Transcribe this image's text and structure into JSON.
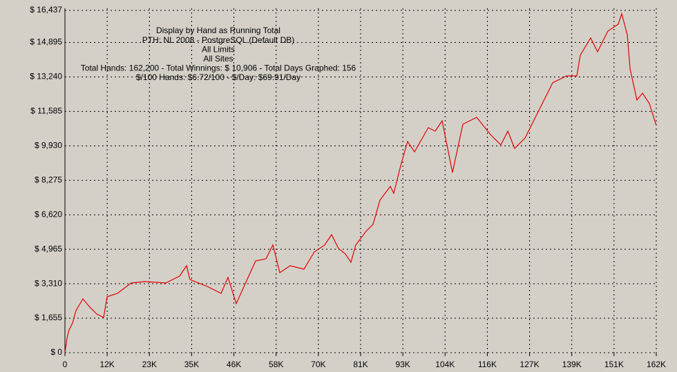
{
  "chart_data": {
    "type": "line",
    "annotations": [
      "Display by Hand as Running Total",
      "PTH: NL 2008 - PostgreSQL (Default DB)",
      "All Limits",
      "All Sites",
      "Total Hands: 162,200 - Total Winnings: $ 10,906 - Total Days Graphed: 156",
      "$/100 Hands: $6.72/100 - $/Day: $69.91/Day"
    ],
    "color": "#e00000",
    "grid": true,
    "xlim": [
      0,
      162200
    ],
    "ylim": [
      0,
      16437
    ],
    "xticks": [
      0,
      {
        "value": 11586,
        "label": "12K"
      },
      {
        "value": 23171,
        "label": "23K"
      },
      {
        "value": 34757,
        "label": "35K"
      },
      {
        "value": 46343,
        "label": "46K"
      },
      {
        "value": 57929,
        "label": "58K"
      },
      {
        "value": 69514,
        "label": "70K"
      },
      {
        "value": 81100,
        "label": "81K"
      },
      {
        "value": 92686,
        "label": "93K"
      },
      {
        "value": 104271,
        "label": "104K"
      },
      {
        "value": 115857,
        "label": "116K"
      },
      {
        "value": 127443,
        "label": "127K"
      },
      {
        "value": 139029,
        "label": "139K"
      },
      {
        "value": 150614,
        "label": "151K"
      },
      {
        "value": 162200,
        "label": "162K"
      }
    ],
    "yticks": [
      {
        "value": 0,
        "label": "$ 0"
      },
      {
        "value": 1655,
        "label": "$ 1,655"
      },
      {
        "value": 3310,
        "label": "$ 3,310"
      },
      {
        "value": 4965,
        "label": "$ 4,965"
      },
      {
        "value": 6620,
        "label": "$ 6,620"
      },
      {
        "value": 8275,
        "label": "$ 8,275"
      },
      {
        "value": 9930,
        "label": "$ 9,930"
      },
      {
        "value": 11585,
        "label": "$ 11,585"
      },
      {
        "value": 13240,
        "label": "$ 13,240"
      },
      {
        "value": 14895,
        "label": "$ 14,895"
      },
      {
        "value": 16437,
        "label": "$ 16,437"
      }
    ],
    "x": [
      0,
      570,
      1140,
      2080,
      3030,
      4930,
      6820,
      8720,
      10610,
      11560,
      14400,
      18190,
      21980,
      27670,
      31460,
      33350,
      34300,
      39040,
      42830,
      44720,
      47000,
      50410,
      52300,
      55140,
      57040,
      58930,
      61780,
      65570,
      68410,
      71250,
      73150,
      75040,
      76940,
      78450,
      79780,
      82620,
      84520,
      86410,
      89250,
      90200,
      92090,
      93990,
      95880,
      99670,
      101570,
      103460,
      106300,
      109140,
      112940,
      116730,
      119570,
      121470,
      123360,
      126200,
      129990,
      133780,
      137570,
      140410,
      141360,
      144200,
      146100,
      148940,
      151780,
      152730,
      154250,
      155010,
      156900,
      158420,
      160310,
      162200
    ],
    "values": [
      0,
      696,
      1094,
      1425,
      2022,
      2585,
      2187,
      1856,
      1690,
      2684,
      2850,
      3347,
      3413,
      3347,
      3679,
      4176,
      3513,
      3181,
      2850,
      3612,
      2353,
      3679,
      4408,
      4507,
      5170,
      3844,
      4176,
      4010,
      4838,
      5170,
      5667,
      5004,
      4739,
      4341,
      5170,
      5833,
      6164,
      7324,
      7987,
      7655,
      8981,
      10141,
      9644,
      10804,
      10638,
      11135,
      8650,
      10969,
      11301,
      10472,
      9975,
      10638,
      9809,
      10307,
      11632,
      12958,
      13289,
      13289,
      14283,
      15112,
      14449,
      15443,
      15774,
      16272,
      15277,
      13621,
      12129,
      12460,
      11964,
      10906
    ]
  }
}
